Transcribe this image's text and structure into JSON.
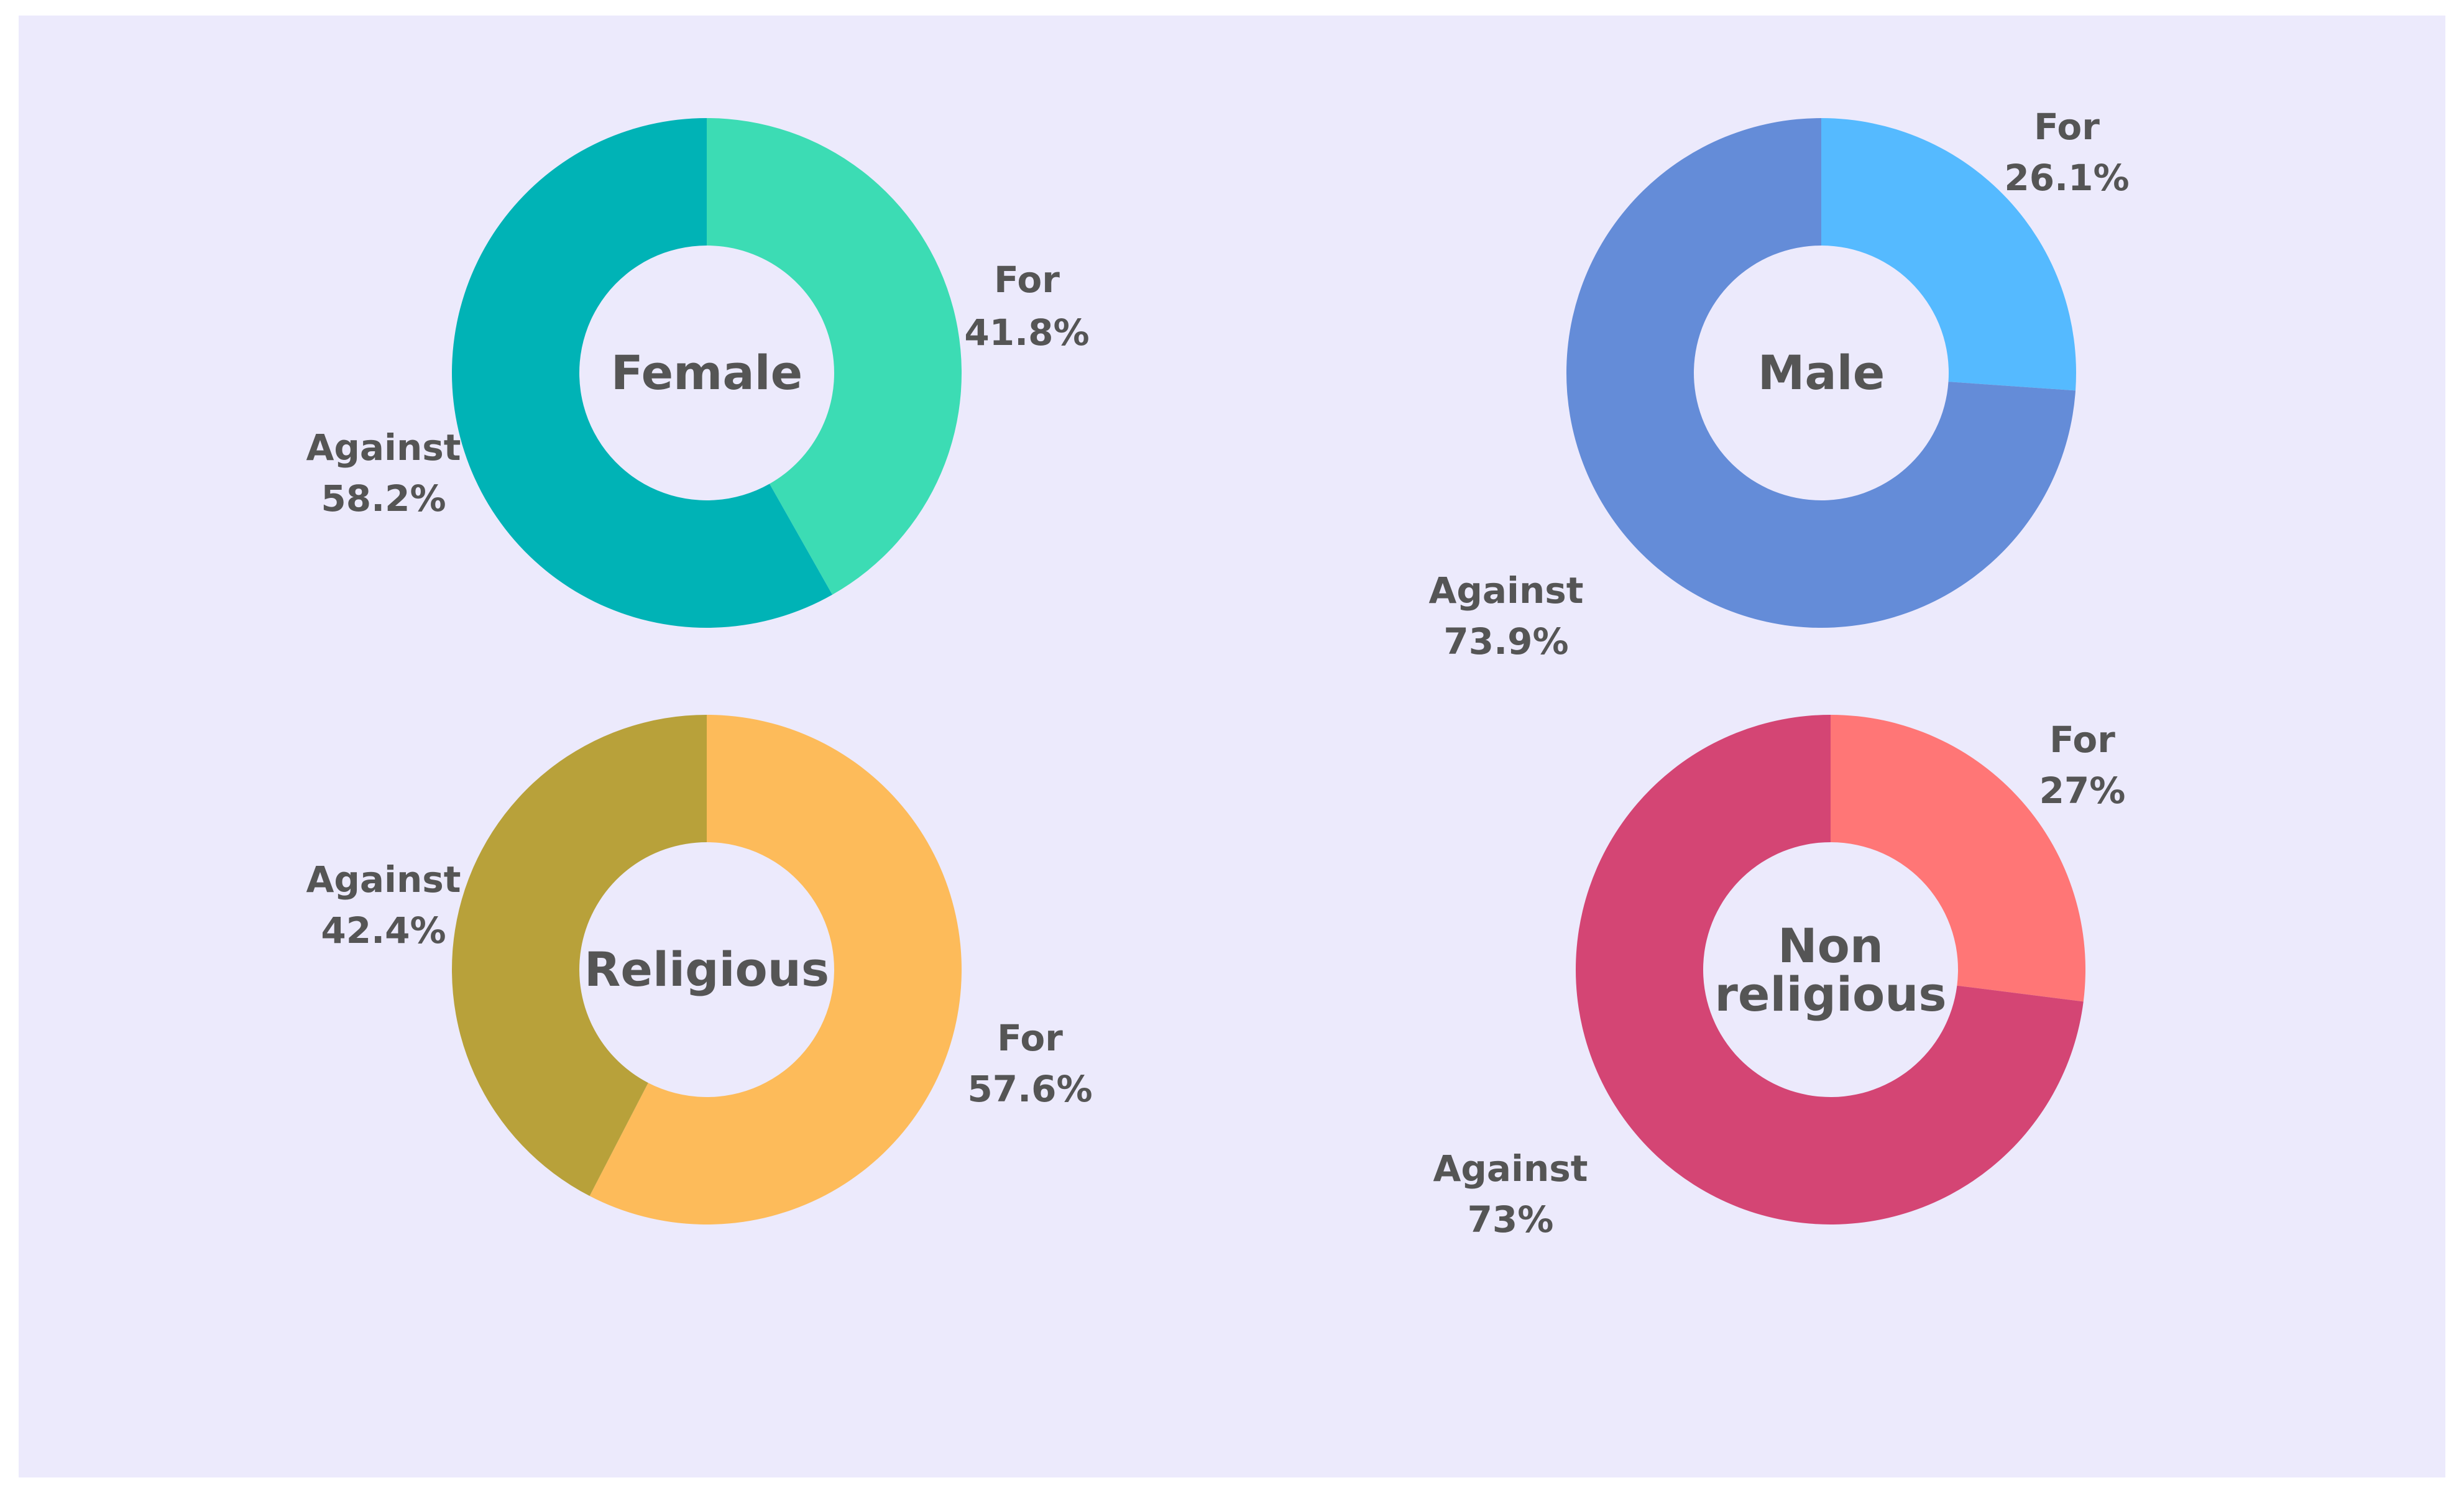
{
  "colors": {
    "background": "#eceafc",
    "text": "#555555",
    "hole": "#eceafc"
  },
  "chart_data": [
    {
      "type": "pie",
      "title": "Female",
      "slices": [
        {
          "label": "For",
          "value": 41.8,
          "value_label": "41.8%",
          "color": "#3cdcb4"
        },
        {
          "label": "Against",
          "value": 58.2,
          "value_label": "58.2%",
          "color": "#00b3b6"
        }
      ]
    },
    {
      "type": "pie",
      "title": "Male",
      "slices": [
        {
          "label": "For",
          "value": 26.1,
          "value_label": "26.1%",
          "color": "#55baff"
        },
        {
          "label": "Against",
          "value": 73.9,
          "value_label": "73.9%",
          "color": "#648cd8"
        }
      ]
    },
    {
      "type": "pie",
      "title": "Religious",
      "slices": [
        {
          "label": "For",
          "value": 57.6,
          "value_label": "57.6%",
          "color": "#fdbb5a"
        },
        {
          "label": "Against",
          "value": 42.4,
          "value_label": "42.4%",
          "color": "#b8a13a"
        }
      ]
    },
    {
      "type": "pie",
      "title": "Non religious",
      "title_lines": [
        "Non",
        "religious"
      ],
      "slices": [
        {
          "label": "For",
          "value": 27,
          "value_label": "27%",
          "color": "#ff7676"
        },
        {
          "label": "Against",
          "value": 73,
          "value_label": "73%",
          "color": "#d44574"
        }
      ]
    }
  ]
}
